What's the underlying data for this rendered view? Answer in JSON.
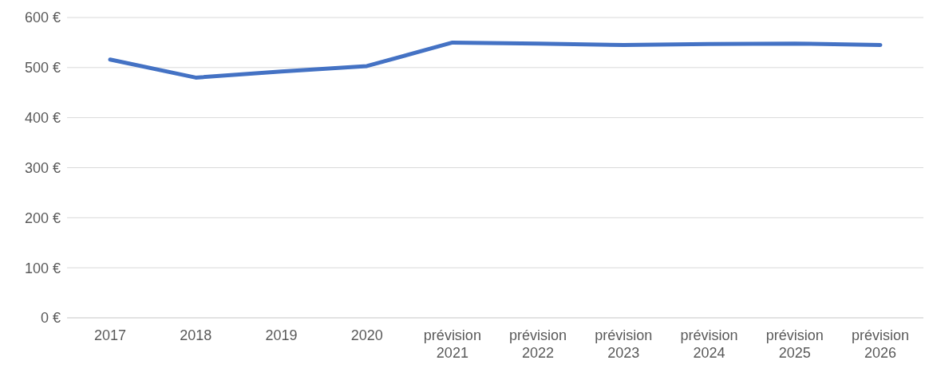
{
  "chart_data": {
    "type": "line",
    "categories": [
      "2017",
      "2018",
      "2019",
      "2020",
      "prévision\n2021",
      "prévision\n2022",
      "prévision\n2023",
      "prévision\n2024",
      "prévision\n2025",
      "prévision\n2026"
    ],
    "series": [
      {
        "color": "#4472c4",
        "values": [
          516,
          480,
          492,
          503,
          550,
          548,
          545,
          547,
          548,
          545
        ]
      }
    ],
    "ylim": [
      0,
      600
    ],
    "yticks": [
      {
        "value": 0,
        "label": "0 €"
      },
      {
        "value": 100,
        "label": "100 €"
      },
      {
        "value": 200,
        "label": "200 €"
      },
      {
        "value": 300,
        "label": "300 €"
      },
      {
        "value": 400,
        "label": "400 €"
      },
      {
        "value": 500,
        "label": "500 €"
      },
      {
        "value": 600,
        "label": "600 €"
      }
    ],
    "grid": "y",
    "legend": false,
    "marker": "none",
    "line_style": "solid"
  }
}
